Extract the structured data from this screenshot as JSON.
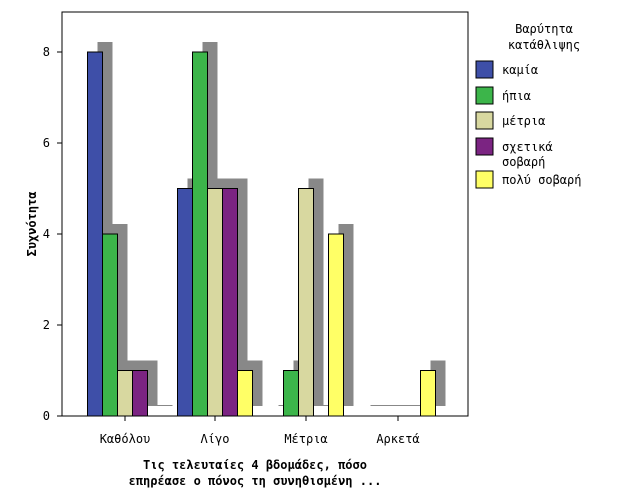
{
  "chart_data": {
    "type": "bar",
    "xlabel": "Τις τελευταίες 4 βδομάδες, πόσο επηρέασε ο πόνος τη συνηθισμένη ...",
    "xlabel_lines": [
      "Τις τελευταίες 4 βδομάδες, πόσο",
      "επηρέασε ο πόνος τη συνηθισμένη ..."
    ],
    "ylabel": "Συχνότητα",
    "ylim": [
      0,
      9
    ],
    "yticks": [
      0,
      2,
      4,
      6,
      8
    ],
    "categories": [
      "Καθόλου",
      "Λίγο",
      "Μέτρια",
      "Αρκετά"
    ],
    "legend_title": "Βαρύτητα κατάθλιψης",
    "legend_title_lines": [
      "Βαρύτητα",
      "κατάθλιψης"
    ],
    "legend_position": "right",
    "grid": false,
    "series": [
      {
        "name": "καμία",
        "name_lines": [
          "καμία"
        ],
        "color": "#3e4fa8",
        "values": [
          8,
          5,
          0,
          0
        ]
      },
      {
        "name": "ήπια",
        "name_lines": [
          "ήπια"
        ],
        "color": "#3cb54a",
        "values": [
          4,
          8,
          1,
          0
        ]
      },
      {
        "name": "μέτρια",
        "name_lines": [
          "μέτρια"
        ],
        "color": "#d8d8a0",
        "values": [
          1,
          5,
          5,
          0
        ]
      },
      {
        "name": "σχετικά σοβαρή",
        "name_lines": [
          "σχετικά",
          "σοβαρή"
        ],
        "color": "#7b2482",
        "values": [
          1,
          5,
          0,
          0
        ]
      },
      {
        "name": "πολύ σοβαρή",
        "name_lines": [
          "πολύ σοβαρή"
        ],
        "color": "#ffff66",
        "values": [
          0,
          1,
          4,
          1
        ]
      }
    ],
    "shadow_color": "#888888"
  }
}
